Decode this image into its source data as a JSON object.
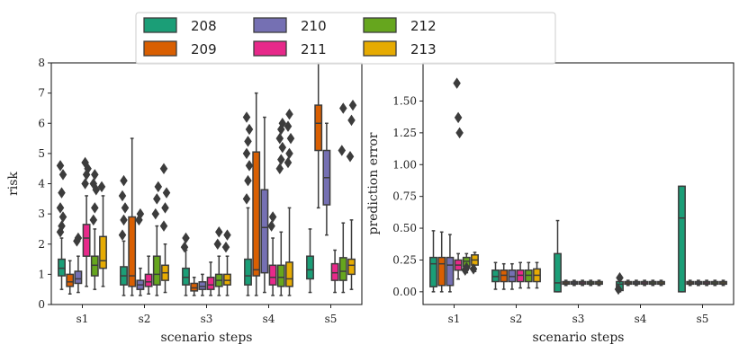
{
  "chart_data": [
    {
      "type": "box",
      "title": "",
      "xlabel": "scenario steps",
      "ylabel": "risk",
      "ylim": [
        0,
        8
      ],
      "yticks": [
        "0",
        "1",
        "2",
        "3",
        "4",
        "5",
        "6",
        "7",
        "8"
      ],
      "categories": [
        "s1",
        "s2",
        "s3",
        "s4",
        "s5"
      ],
      "series": [
        {
          "name": "208",
          "boxes": [
            {
              "q1": 0.95,
              "median": 1.2,
              "q3": 1.5,
              "whislo": 0.5,
              "whishi": 2.2,
              "fliers": [
                2.4,
                2.6,
                2.9,
                3.2,
                3.7,
                4.3,
                4.6
              ]
            },
            {
              "q1": 0.65,
              "median": 0.95,
              "q3": 1.25,
              "whislo": 0.3,
              "whishi": 2.1,
              "fliers": [
                2.3,
                2.8,
                3.2,
                3.6,
                4.1
              ]
            },
            {
              "q1": 0.65,
              "median": 0.9,
              "q3": 1.2,
              "whislo": 0.3,
              "whishi": 1.8,
              "fliers": [
                1.9,
                2.2
              ]
            },
            {
              "q1": 0.65,
              "median": 0.95,
              "q3": 1.5,
              "whislo": 0.3,
              "whishi": 3.2,
              "fliers": [
                3.5,
                4.1,
                4.6,
                5.0,
                5.4,
                5.8,
                6.2
              ]
            },
            {
              "q1": 0.85,
              "median": 1.15,
              "q3": 1.6,
              "whislo": 0.4,
              "whishi": 2.5,
              "fliers": []
            }
          ]
        },
        {
          "name": "209",
          "boxes": [
            {
              "q1": 0.6,
              "median": 0.75,
              "q3": 1.0,
              "whislo": 0.35,
              "whishi": 1.45,
              "fliers": []
            },
            {
              "q1": 0.6,
              "median": 0.95,
              "q3": 2.9,
              "whislo": 0.3,
              "whishi": 5.5,
              "fliers": []
            },
            {
              "q1": 0.45,
              "median": 0.55,
              "q3": 0.7,
              "whislo": 0.3,
              "whishi": 0.9,
              "fliers": []
            },
            {
              "q1": 0.95,
              "median": 1.15,
              "q3": 5.05,
              "whislo": 0.3,
              "whishi": 7.0,
              "fliers": []
            },
            {
              "q1": 5.1,
              "median": 6.0,
              "q3": 6.6,
              "whislo": 3.2,
              "whishi": 8.0,
              "fliers": []
            }
          ]
        },
        {
          "name": "210",
          "boxes": [
            {
              "q1": 0.7,
              "median": 0.85,
              "q3": 1.1,
              "whislo": 0.4,
              "whishi": 1.6,
              "fliers": [
                2.1,
                2.2
              ]
            },
            {
              "q1": 0.5,
              "median": 0.65,
              "q3": 0.8,
              "whislo": 0.3,
              "whishi": 1.2,
              "fliers": [
                2.8,
                3.0
              ]
            },
            {
              "q1": 0.5,
              "median": 0.6,
              "q3": 0.75,
              "whislo": 0.3,
              "whishi": 1.0,
              "fliers": []
            },
            {
              "q1": 1.05,
              "median": 2.55,
              "q3": 3.8,
              "whislo": 0.4,
              "whishi": 6.2,
              "fliers": []
            },
            {
              "q1": 3.3,
              "median": 4.2,
              "q3": 5.1,
              "whislo": 2.3,
              "whishi": 6.0,
              "fliers": []
            }
          ]
        },
        {
          "name": "211",
          "boxes": [
            {
              "q1": 1.6,
              "median": 2.2,
              "q3": 2.65,
              "whislo": 0.6,
              "whishi": 3.6,
              "fliers": [
                4.0,
                4.3,
                4.5,
                4.7
              ]
            },
            {
              "q1": 0.6,
              "median": 0.75,
              "q3": 1.0,
              "whislo": 0.35,
              "whishi": 1.6,
              "fliers": []
            },
            {
              "q1": 0.5,
              "median": 0.65,
              "q3": 0.9,
              "whislo": 0.3,
              "whishi": 1.4,
              "fliers": []
            },
            {
              "q1": 0.65,
              "median": 0.9,
              "q3": 1.3,
              "whislo": 0.3,
              "whishi": 2.2,
              "fliers": [
                2.6,
                2.9
              ]
            },
            {
              "q1": 0.8,
              "median": 1.05,
              "q3": 1.35,
              "whislo": 0.4,
              "whishi": 1.8,
              "fliers": []
            }
          ]
        },
        {
          "name": "212",
          "boxes": [
            {
              "q1": 0.95,
              "median": 1.3,
              "q3": 1.6,
              "whislo": 0.5,
              "whishi": 2.5,
              "fliers": [
                2.8,
                3.2,
                3.8,
                4.0,
                4.3
              ]
            },
            {
              "q1": 0.65,
              "median": 1.0,
              "q3": 1.6,
              "whislo": 0.3,
              "whishi": 2.6,
              "fliers": [
                3.0,
                3.5,
                3.9
              ]
            },
            {
              "q1": 0.6,
              "median": 0.8,
              "q3": 1.0,
              "whislo": 0.3,
              "whishi": 1.6,
              "fliers": [
                2.0,
                2.4
              ]
            },
            {
              "q1": 0.6,
              "median": 0.9,
              "q3": 1.3,
              "whislo": 0.3,
              "whishi": 2.4,
              "fliers": [
                4.5,
                4.8,
                5.2,
                5.5,
                5.8,
                6.0
              ]
            },
            {
              "q1": 0.8,
              "median": 1.1,
              "q3": 1.55,
              "whislo": 0.4,
              "whishi": 2.7,
              "fliers": [
                5.1,
                6.5
              ]
            }
          ]
        },
        {
          "name": "213",
          "boxes": [
            {
              "q1": 1.2,
              "median": 1.45,
              "q3": 2.25,
              "whislo": 0.6,
              "whishi": 3.6,
              "fliers": [
                3.9
              ]
            },
            {
              "q1": 0.8,
              "median": 1.05,
              "q3": 1.3,
              "whislo": 0.4,
              "whishi": 2.0,
              "fliers": [
                2.6,
                3.2,
                3.7,
                4.5
              ]
            },
            {
              "q1": 0.65,
              "median": 0.8,
              "q3": 1.0,
              "whislo": 0.3,
              "whishi": 1.6,
              "fliers": [
                1.9,
                2.3
              ]
            },
            {
              "q1": 0.6,
              "median": 0.85,
              "q3": 1.4,
              "whislo": 0.3,
              "whishi": 3.2,
              "fliers": [
                4.7,
                5.0,
                5.5,
                5.9,
                6.3
              ]
            },
            {
              "q1": 1.0,
              "median": 1.3,
              "q3": 1.5,
              "whislo": 0.5,
              "whishi": 2.8,
              "fliers": [
                4.9,
                6.1,
                6.6
              ]
            }
          ]
        }
      ]
    },
    {
      "type": "box",
      "title": "",
      "xlabel": "scenario steps",
      "ylabel": "prediction error",
      "ylim": [
        -0.1,
        1.8
      ],
      "yticks": [
        "0.00",
        "0.25",
        "0.50",
        "0.75",
        "1.00",
        "1.25",
        "1.50"
      ],
      "categories": [
        "s1",
        "s2",
        "s3",
        "s4",
        "s5"
      ],
      "series": [
        {
          "name": "208",
          "boxes": [
            {
              "q1": 0.04,
              "median": 0.22,
              "q3": 0.27,
              "whislo": 0.0,
              "whishi": 0.48,
              "fliers": []
            },
            {
              "q1": 0.08,
              "median": 0.12,
              "q3": 0.17,
              "whislo": 0.02,
              "whishi": 0.23,
              "fliers": []
            },
            {
              "q1": 0.0,
              "median": 0.07,
              "q3": 0.3,
              "whislo": 0.0,
              "whishi": 0.56,
              "fliers": []
            },
            {
              "q1": 0.01,
              "median": 0.06,
              "q3": 0.08,
              "whislo": 0.0,
              "whishi": 0.1,
              "fliers": [
                0.02,
                0.11
              ]
            },
            {
              "q1": 0.0,
              "median": 0.58,
              "q3": 0.83,
              "whislo": 0.0,
              "whishi": 0.83,
              "fliers": []
            }
          ]
        },
        {
          "name": "209",
          "boxes": [
            {
              "q1": 0.05,
              "median": 0.22,
              "q3": 0.27,
              "whislo": 0.0,
              "whishi": 0.47,
              "fliers": []
            },
            {
              "q1": 0.08,
              "median": 0.13,
              "q3": 0.17,
              "whislo": 0.02,
              "whishi": 0.22,
              "fliers": []
            },
            {
              "q1": 0.06,
              "median": 0.07,
              "q3": 0.08,
              "whislo": 0.05,
              "whishi": 0.09,
              "fliers": []
            },
            {
              "q1": 0.06,
              "median": 0.07,
              "q3": 0.08,
              "whislo": 0.05,
              "whishi": 0.09,
              "fliers": []
            },
            {
              "q1": 0.06,
              "median": 0.07,
              "q3": 0.08,
              "whislo": 0.05,
              "whishi": 0.09,
              "fliers": []
            }
          ]
        },
        {
          "name": "210",
          "boxes": [
            {
              "q1": 0.05,
              "median": 0.21,
              "q3": 0.27,
              "whislo": 0.0,
              "whishi": 0.45,
              "fliers": []
            },
            {
              "q1": 0.08,
              "median": 0.12,
              "q3": 0.17,
              "whislo": 0.02,
              "whishi": 0.22,
              "fliers": []
            },
            {
              "q1": 0.06,
              "median": 0.07,
              "q3": 0.08,
              "whislo": 0.05,
              "whishi": 0.09,
              "fliers": []
            },
            {
              "q1": 0.06,
              "median": 0.07,
              "q3": 0.08,
              "whislo": 0.05,
              "whishi": 0.09,
              "fliers": []
            },
            {
              "q1": 0.06,
              "median": 0.07,
              "q3": 0.08,
              "whislo": 0.05,
              "whishi": 0.09,
              "fliers": []
            }
          ]
        },
        {
          "name": "211",
          "boxes": [
            {
              "q1": 0.17,
              "median": 0.21,
              "q3": 0.25,
              "whislo": 0.1,
              "whishi": 0.3,
              "fliers": [
                1.64,
                1.37,
                1.25
              ]
            },
            {
              "q1": 0.08,
              "median": 0.13,
              "q3": 0.17,
              "whislo": 0.03,
              "whishi": 0.23,
              "fliers": []
            },
            {
              "q1": 0.06,
              "median": 0.07,
              "q3": 0.08,
              "whislo": 0.05,
              "whishi": 0.09,
              "fliers": []
            },
            {
              "q1": 0.06,
              "median": 0.07,
              "q3": 0.08,
              "whislo": 0.05,
              "whishi": 0.09,
              "fliers": []
            },
            {
              "q1": 0.06,
              "median": 0.07,
              "q3": 0.08,
              "whislo": 0.05,
              "whishi": 0.09,
              "fliers": []
            }
          ]
        },
        {
          "name": "212",
          "boxes": [
            {
              "q1": 0.2,
              "median": 0.24,
              "q3": 0.27,
              "whislo": 0.15,
              "whishi": 0.3,
              "fliers": [
                0.17,
                0.19
              ]
            },
            {
              "q1": 0.08,
              "median": 0.13,
              "q3": 0.17,
              "whislo": 0.03,
              "whishi": 0.23,
              "fliers": []
            },
            {
              "q1": 0.06,
              "median": 0.07,
              "q3": 0.08,
              "whislo": 0.05,
              "whishi": 0.09,
              "fliers": []
            },
            {
              "q1": 0.06,
              "median": 0.07,
              "q3": 0.08,
              "whislo": 0.05,
              "whishi": 0.09,
              "fliers": []
            },
            {
              "q1": 0.06,
              "median": 0.07,
              "q3": 0.08,
              "whislo": 0.05,
              "whishi": 0.09,
              "fliers": []
            }
          ]
        },
        {
          "name": "213",
          "boxes": [
            {
              "q1": 0.21,
              "median": 0.25,
              "q3": 0.29,
              "whislo": 0.16,
              "whishi": 0.31,
              "fliers": [
                0.18
              ]
            },
            {
              "q1": 0.08,
              "median": 0.13,
              "q3": 0.18,
              "whislo": 0.03,
              "whishi": 0.23,
              "fliers": []
            },
            {
              "q1": 0.06,
              "median": 0.07,
              "q3": 0.08,
              "whislo": 0.05,
              "whishi": 0.09,
              "fliers": []
            },
            {
              "q1": 0.06,
              "median": 0.07,
              "q3": 0.08,
              "whislo": 0.05,
              "whishi": 0.09,
              "fliers": []
            },
            {
              "q1": 0.06,
              "median": 0.07,
              "q3": 0.08,
              "whislo": 0.05,
              "whishi": 0.09,
              "fliers": []
            }
          ]
        }
      ]
    }
  ],
  "legend": {
    "placement": "top-center",
    "entries": [
      {
        "label": "208",
        "color": "#1b9e77"
      },
      {
        "label": "209",
        "color": "#d95f02"
      },
      {
        "label": "210",
        "color": "#7570b3"
      },
      {
        "label": "211",
        "color": "#e7298a"
      },
      {
        "label": "212",
        "color": "#66a61e"
      },
      {
        "label": "213",
        "color": "#e6ab02"
      }
    ]
  }
}
